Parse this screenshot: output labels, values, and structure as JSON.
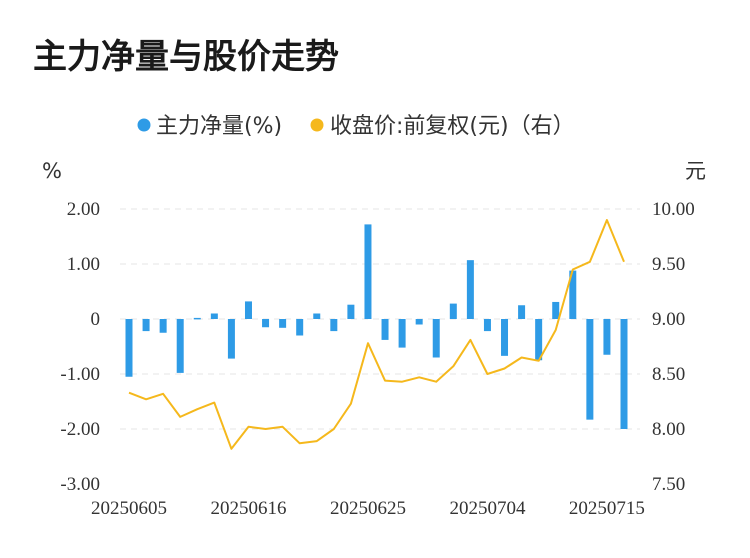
{
  "chart_data": {
    "type": "bar+line",
    "title": "主力净量与股价走势",
    "legend": [
      {
        "label": "主力净量(%)",
        "color": "#2e9be6"
      },
      {
        "label": "收盘价:前复权(元)（右）",
        "color": "#f5b81c"
      }
    ],
    "left_unit": "%",
    "right_unit": "元",
    "left_ticks": [
      "2.00",
      "1.00",
      "0",
      "-1.00",
      "-2.00",
      "-3.00"
    ],
    "right_ticks": [
      "10.00",
      "9.50",
      "9.00",
      "8.50",
      "8.00",
      "7.50"
    ],
    "y_left_range": [
      -3,
      2
    ],
    "y_right_range": [
      7.5,
      10
    ],
    "x_tick_labels": [
      {
        "label": "20250605",
        "index": 0
      },
      {
        "label": "20250616",
        "index": 7
      },
      {
        "label": "20250625",
        "index": 14
      },
      {
        "label": "20250704",
        "index": 21
      },
      {
        "label": "20250715",
        "index": 28
      }
    ],
    "bar_color": "#2e9be6",
    "line_color": "#f5b81c",
    "series": [
      {
        "name": "主力净量(%)",
        "values": [
          -1.05,
          -0.22,
          -0.25,
          -0.98,
          0.02,
          0.1,
          -0.72,
          0.32,
          -0.15,
          -0.16,
          -0.3,
          0.1,
          -0.22,
          0.26,
          1.72,
          -0.38,
          -0.52,
          -0.1,
          -0.7,
          0.28,
          1.07,
          -0.22,
          -0.67,
          0.25,
          -0.75,
          0.31,
          0.88,
          -1.83,
          -0.65,
          -2.0
        ]
      },
      {
        "name": "收盘价:前复权(元)（右）",
        "values": [
          8.33,
          8.27,
          8.32,
          8.11,
          8.18,
          8.24,
          7.82,
          8.02,
          8.0,
          8.02,
          7.87,
          7.89,
          8.0,
          8.23,
          8.78,
          8.44,
          8.43,
          8.47,
          8.43,
          8.57,
          8.81,
          8.5,
          8.55,
          8.65,
          8.62,
          8.9,
          9.45,
          9.52,
          9.9,
          9.52
        ]
      }
    ]
  }
}
